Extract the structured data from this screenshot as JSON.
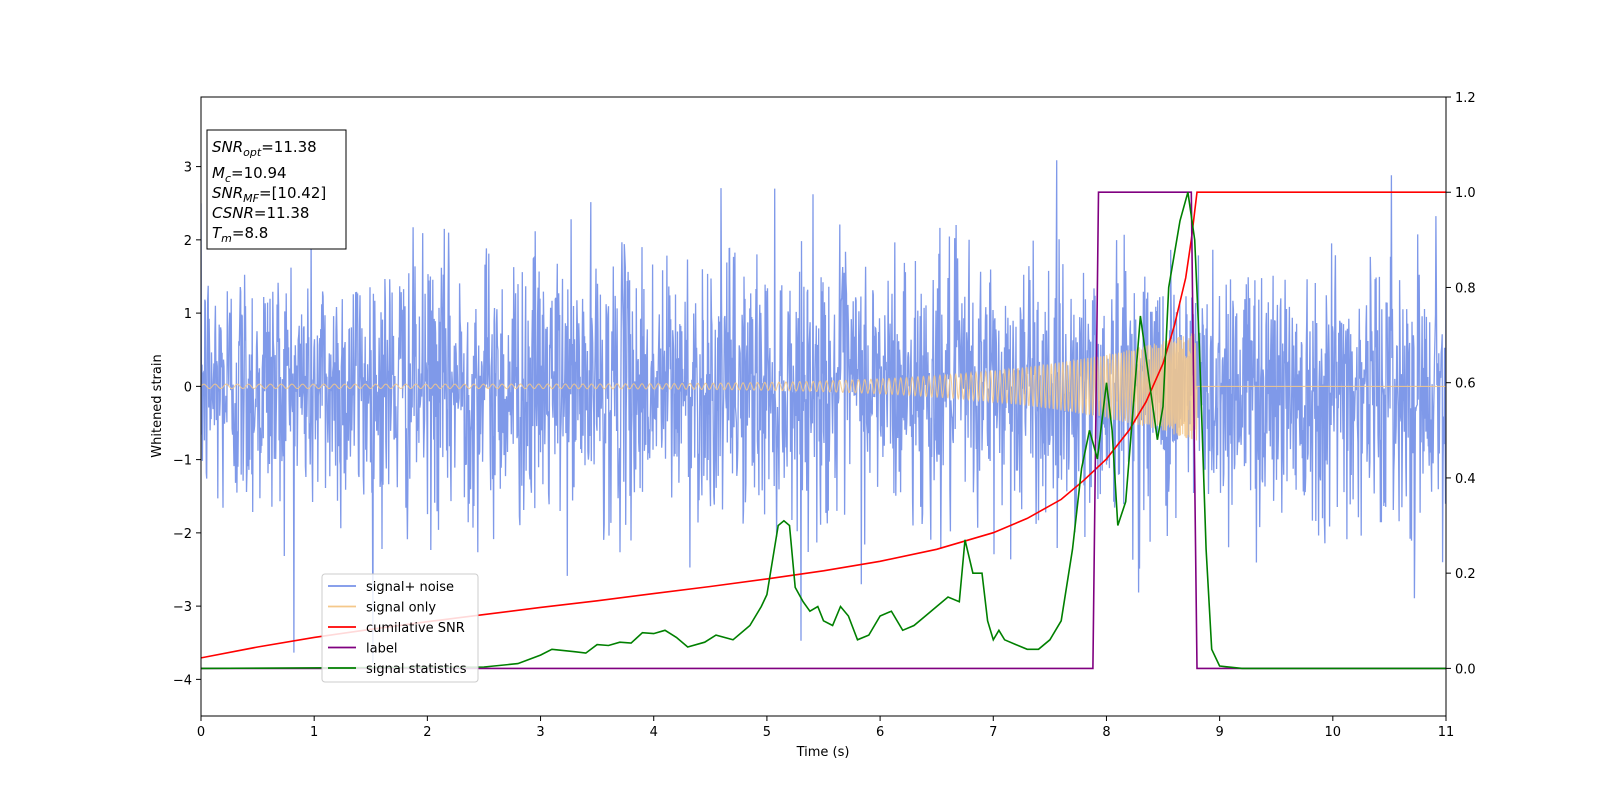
{
  "chart_data": {
    "type": "line",
    "xlabel": "Time (s)",
    "ylabel": "Whitened strain",
    "xlim": [
      0,
      11
    ],
    "ylim_left": [
      -4.5,
      3.95
    ],
    "ylim_right": [
      -0.1,
      1.2
    ],
    "x_ticks": [
      "0",
      "1",
      "2",
      "3",
      "4",
      "5",
      "6",
      "7",
      "8",
      "9",
      "10",
      "11"
    ],
    "y_left_ticks": [
      "−4",
      "−3",
      "−2",
      "−1",
      "0",
      "1",
      "2",
      "3"
    ],
    "y_right_ticks": [
      "0.0",
      "0.2",
      "0.4",
      "0.6",
      "0.8",
      "1.0",
      "1.2"
    ],
    "grid": false,
    "legend_position": "lower-left",
    "legend": [
      {
        "label": "signal+ noise",
        "color": "#7893e8"
      },
      {
        "label": "signal only",
        "color": "#f5c88a"
      },
      {
        "label": "cumilative SNR",
        "color": "#ff0000"
      },
      {
        "label": "label",
        "color": "#800080"
      },
      {
        "label": "signal statistics",
        "color": "#008000"
      }
    ],
    "annotation": {
      "snr_opt": {
        "name": "SNR",
        "sub": "opt",
        "value": "=11.38"
      },
      "mc": {
        "name": "M",
        "sub": "c",
        "value": "=10.94"
      },
      "snr_mf": {
        "name": "SNR",
        "sub": "MF",
        "value": "=[10.42]"
      },
      "csnr": {
        "name": "CSNR",
        "value": "=11.38"
      },
      "tm": {
        "name": "T",
        "sub": "m",
        "value": "=8.8"
      }
    },
    "series": [
      {
        "name": "signal+ noise",
        "axis": "left",
        "color": "#7893e8",
        "kind": "noise",
        "std": 0.9,
        "range": [
          -4.2,
          3.6
        ]
      },
      {
        "name": "signal only",
        "axis": "left",
        "color": "#f5c88a",
        "kind": "chirp",
        "start_amplitude": 0.03,
        "end_amplitude": 0.75,
        "merger_time": 8.8
      },
      {
        "name": "cumilative SNR",
        "axis": "right",
        "color": "#ff0000",
        "x": [
          0,
          0.5,
          1,
          1.5,
          2,
          2.5,
          3,
          3.5,
          4,
          4.5,
          5,
          5.5,
          6,
          6.5,
          7,
          7.3,
          7.6,
          7.8,
          8.0,
          8.2,
          8.35,
          8.5,
          8.6,
          8.7,
          8.75,
          8.8,
          11
        ],
        "y": [
          0.022,
          0.045,
          0.065,
          0.082,
          0.098,
          0.113,
          0.128,
          0.142,
          0.157,
          0.172,
          0.188,
          0.205,
          0.225,
          0.25,
          0.285,
          0.315,
          0.355,
          0.395,
          0.44,
          0.5,
          0.56,
          0.64,
          0.72,
          0.82,
          0.9,
          1.0,
          1.0
        ]
      },
      {
        "name": "label",
        "axis": "right",
        "color": "#800080",
        "x": [
          0,
          7.88,
          7.93,
          8.75,
          8.8,
          11
        ],
        "y": [
          0,
          0,
          1,
          1,
          0,
          0
        ]
      },
      {
        "name": "signal statistics",
        "axis": "right",
        "color": "#008000",
        "x": [
          0,
          2.5,
          2.8,
          3.0,
          3.1,
          3.3,
          3.4,
          3.5,
          3.6,
          3.7,
          3.8,
          3.9,
          4.0,
          4.1,
          4.2,
          4.3,
          4.45,
          4.55,
          4.7,
          4.85,
          4.95,
          5.0,
          5.1,
          5.15,
          5.2,
          5.25,
          5.32,
          5.38,
          5.45,
          5.5,
          5.58,
          5.65,
          5.72,
          5.8,
          5.9,
          6.0,
          6.1,
          6.2,
          6.3,
          6.4,
          6.5,
          6.6,
          6.7,
          6.75,
          6.82,
          6.9,
          6.95,
          7.0,
          7.05,
          7.1,
          7.2,
          7.3,
          7.4,
          7.5,
          7.6,
          7.7,
          7.78,
          7.85,
          7.92,
          8.0,
          8.05,
          8.1,
          8.17,
          8.22,
          8.3,
          8.38,
          8.45,
          8.5,
          8.55,
          8.65,
          8.72,
          8.78,
          8.82,
          8.88,
          8.93,
          9.0,
          9.2,
          11
        ],
        "y": [
          0.0,
          0.003,
          0.01,
          0.028,
          0.04,
          0.035,
          0.032,
          0.05,
          0.048,
          0.055,
          0.053,
          0.075,
          0.073,
          0.08,
          0.065,
          0.045,
          0.055,
          0.07,
          0.06,
          0.09,
          0.13,
          0.155,
          0.3,
          0.31,
          0.3,
          0.17,
          0.14,
          0.12,
          0.13,
          0.1,
          0.09,
          0.13,
          0.11,
          0.06,
          0.07,
          0.11,
          0.12,
          0.08,
          0.09,
          0.11,
          0.13,
          0.15,
          0.14,
          0.27,
          0.2,
          0.2,
          0.1,
          0.06,
          0.08,
          0.06,
          0.05,
          0.04,
          0.04,
          0.06,
          0.1,
          0.25,
          0.42,
          0.5,
          0.44,
          0.6,
          0.5,
          0.3,
          0.35,
          0.5,
          0.74,
          0.6,
          0.48,
          0.55,
          0.8,
          0.94,
          1.0,
          0.9,
          0.68,
          0.25,
          0.04,
          0.005,
          0.0,
          0.0
        ]
      }
    ]
  }
}
